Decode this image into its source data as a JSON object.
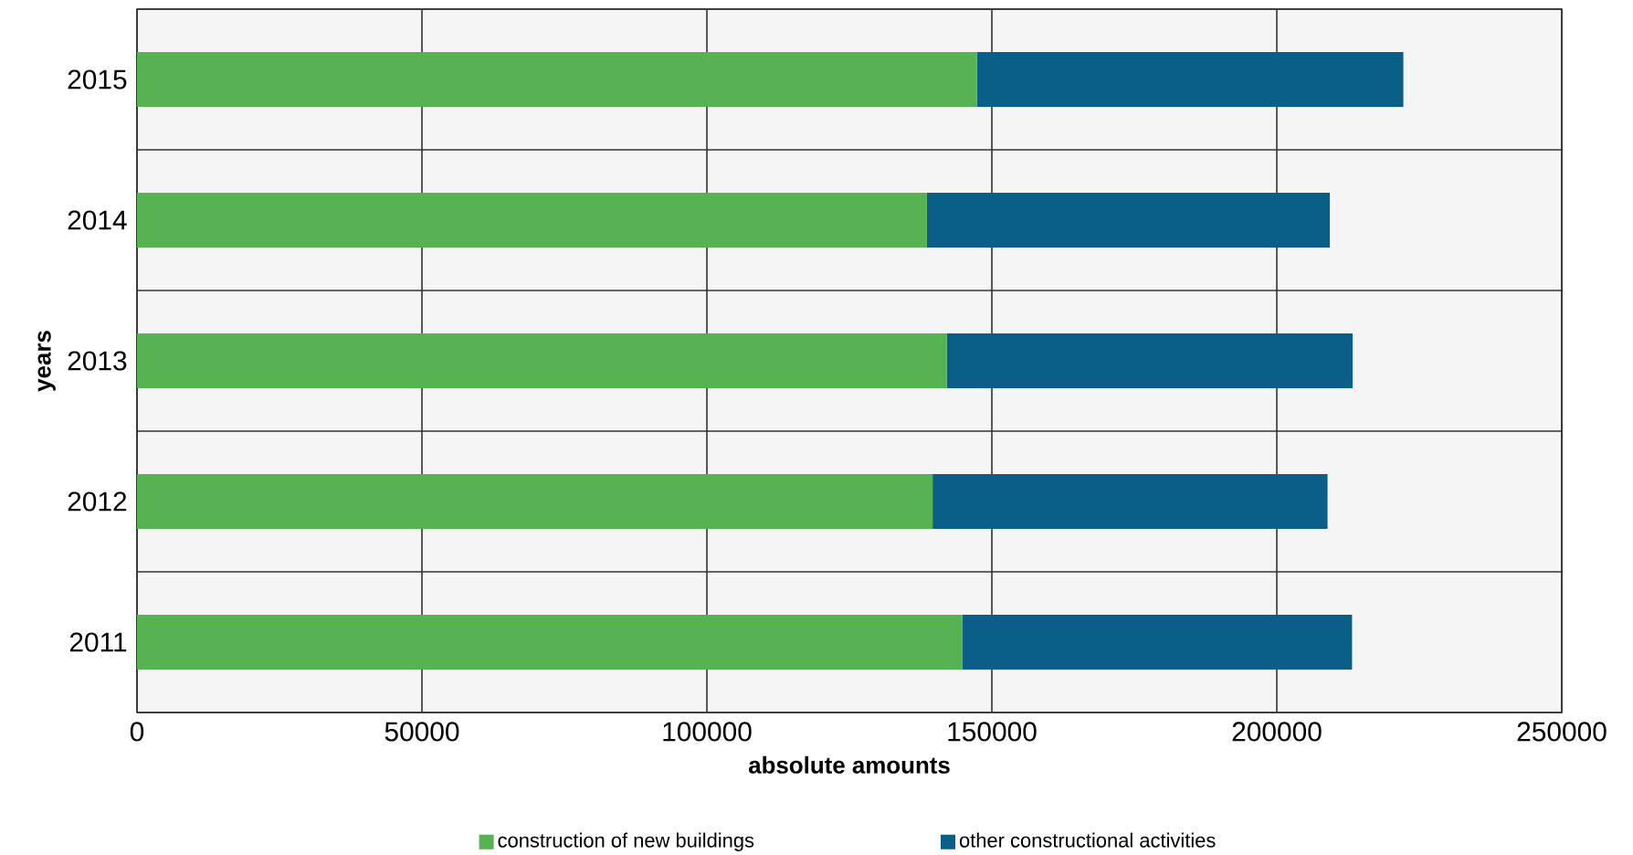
{
  "chart_data": {
    "type": "bar",
    "orientation": "horizontal",
    "stacked": true,
    "xlabel": "absolute amounts",
    "ylabel": "years",
    "categories": [
      "2015",
      "2014",
      "2013",
      "2012",
      "2011"
    ],
    "series": [
      {
        "name": "construction of new buildings",
        "color": "#57b251",
        "values": [
          147400,
          138600,
          142100,
          139600,
          144800
        ]
      },
      {
        "name": "other constructional activities",
        "color": "#0a5f88",
        "values": [
          74800,
          70700,
          71200,
          69300,
          68400
        ]
      }
    ],
    "xlim": [
      0,
      250000
    ],
    "xticks": [
      0,
      50000,
      100000,
      150000,
      200000,
      250000
    ],
    "grid": true,
    "legend": "bottom"
  }
}
